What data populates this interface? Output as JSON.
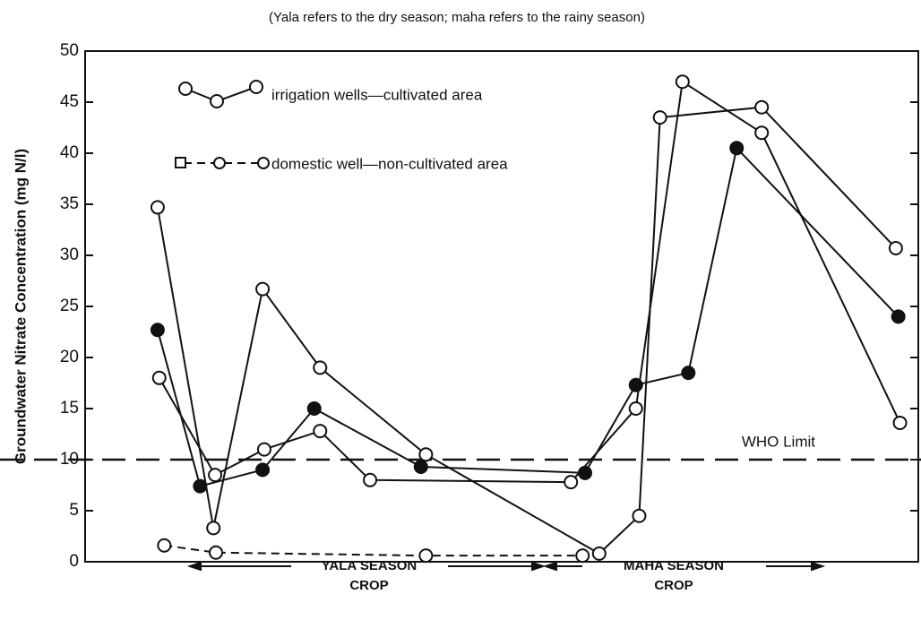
{
  "chart_data": {
    "type": "line",
    "subtitle": "(Yala refers to the dry season; maha refers to the rainy season)",
    "y_label": "Groundwater Nitrate Concentration (mg N/l)",
    "xlim": [
      0,
      100
    ],
    "ylim": [
      0,
      50
    ],
    "yticks": [
      0,
      5,
      10,
      15,
      20,
      25,
      30,
      35,
      40,
      45,
      50
    ],
    "reference_line": {
      "value": 10,
      "label": "WHO Limit"
    },
    "annotations": [
      "YALA SEASON",
      "CROP",
      "MAHA SEASON",
      "CROP"
    ],
    "series": [
      {
        "name": "irrigation wells—cultivated area",
        "color": "#111111",
        "marker": "open",
        "dashed": false,
        "x": [
          8.7,
          15.4,
          21.3,
          28.2,
          40.9,
          61.7,
          66.5,
          69,
          81.2,
          97.3
        ],
        "values": [
          34.7,
          3.3,
          26.7,
          19,
          10.5,
          0.8,
          4.5,
          43.5,
          44.5,
          30.7
        ]
      },
      {
        "color": "#111111",
        "marker": "filled",
        "dashed": false,
        "x": [
          8.7,
          13.8,
          21.3,
          27.5,
          40.3,
          60,
          66.1,
          72.4,
          78.2,
          97.6
        ],
        "values": [
          22.7,
          7.4,
          9,
          15,
          9.3,
          8.7,
          17.3,
          18.5,
          40.5,
          24
        ]
      },
      {
        "color": "#111111",
        "marker": "open",
        "dashed": false,
        "x": [
          8.9,
          15.6,
          21.5,
          28.2,
          34.2,
          58.3,
          66.1,
          71.7,
          81.2,
          97.8
        ],
        "values": [
          18,
          8.5,
          11,
          12.8,
          8,
          7.8,
          15,
          47,
          42,
          13.6
        ]
      },
      {
        "name": "domestic well—non-cultivated area",
        "color": "#111111",
        "marker": "open",
        "dashed": true,
        "x": [
          9.5,
          15.7,
          40.9,
          59.7
        ],
        "values": [
          1.6,
          0.9,
          0.6,
          0.6
        ]
      }
    ]
  }
}
